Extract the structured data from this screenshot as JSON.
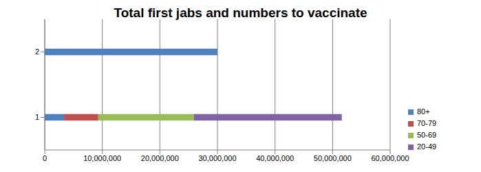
{
  "chart_data": {
    "type": "bar",
    "title": "Total first jabs and numbers to vaccinate",
    "orientation": "horizontal",
    "stacked": true,
    "grid": true,
    "legend": "right",
    "categories": [
      "1",
      "2"
    ],
    "series": [
      {
        "name": "80+",
        "color": "#4f81bd",
        "values": [
          3350000,
          30000000
        ]
      },
      {
        "name": "70-79",
        "color": "#c0504d",
        "values": [
          5950000,
          null
        ]
      },
      {
        "name": "50-69",
        "color": "#9bbb59",
        "values": [
          16600000,
          null
        ]
      },
      {
        "name": "20-49",
        "color": "#8064a2",
        "values": [
          25700000,
          null
        ]
      }
    ],
    "xlim": [
      0,
      60000000
    ],
    "xticks": [
      0,
      {
        "value": 10000000,
        "label": "10,000,000"
      },
      {
        "value": 20000000,
        "label": "20,000,000"
      },
      {
        "value": 30000000,
        "label": "30,000,000"
      },
      {
        "value": 40000000,
        "label": "40,000,000"
      },
      {
        "value": 50000000,
        "label": "50,000,000"
      },
      {
        "value": 60000000,
        "label": "60,000,000"
      }
    ]
  }
}
